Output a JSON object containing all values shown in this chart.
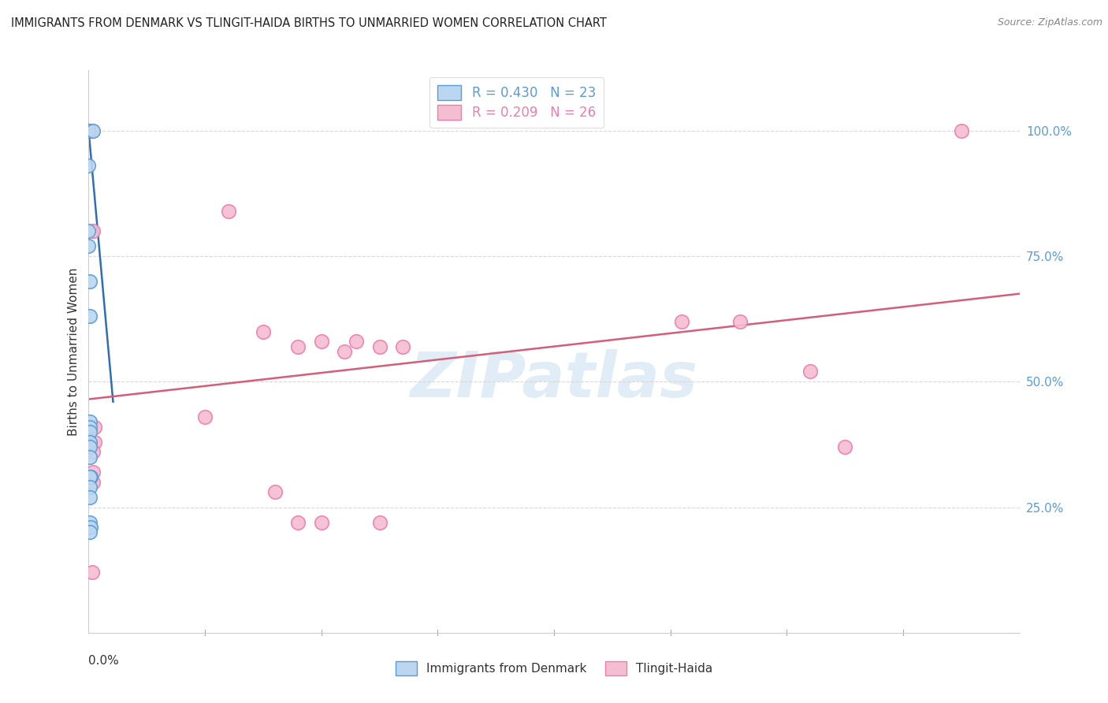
{
  "title": "IMMIGRANTS FROM DENMARK VS TLINGIT-HAIDA BIRTHS TO UNMARRIED WOMEN CORRELATION CHART",
  "source": "Source: ZipAtlas.com",
  "ylabel": "Births to Unmarried Women",
  "ytick_labels": [
    "25.0%",
    "50.0%",
    "75.0%",
    "100.0%"
  ],
  "ytick_positions": [
    0.25,
    0.5,
    0.75,
    1.0
  ],
  "xtick_label_left": "0.0%",
  "xlim": [
    0.0,
    0.8
  ],
  "ylim": [
    0.0,
    1.12
  ],
  "legend_entries": [
    {
      "label": "R = 0.430   N = 23",
      "color": "#5b9bd5"
    },
    {
      "label": "R = 0.209   N = 26",
      "color": "#ed7dac"
    }
  ],
  "legend_labels_bottom": [
    "Immigrants from Denmark",
    "Tlingit-Haida"
  ],
  "series1_scatter_color": "#bad6f0",
  "series1_edge_color": "#5b9bd5",
  "series2_scatter_color": "#f4bdd1",
  "series2_edge_color": "#ed7dac",
  "series1_line_color": "#2e6eb5",
  "series2_line_color": "#d45e7a",
  "series1_x": [
    0.0,
    0.0,
    0.0,
    0.0,
    0.004,
    0.0,
    0.0,
    0.0,
    0.001,
    0.001,
    0.001,
    0.001,
    0.001,
    0.001,
    0.001,
    0.001,
    0.002,
    0.001,
    0.001,
    0.001,
    0.001,
    0.002,
    0.001
  ],
  "series1_y": [
    1.0,
    1.0,
    1.0,
    1.0,
    1.0,
    0.93,
    0.8,
    0.77,
    0.7,
    0.63,
    0.42,
    0.41,
    0.4,
    0.38,
    0.37,
    0.35,
    0.31,
    0.31,
    0.29,
    0.27,
    0.22,
    0.21,
    0.2
  ],
  "series2_x": [
    0.003,
    0.12,
    0.15,
    0.18,
    0.2,
    0.22,
    0.23,
    0.25,
    0.27,
    0.51,
    0.56,
    0.62,
    0.75,
    0.1,
    0.16,
    0.18,
    0.004,
    0.2,
    0.25,
    0.005,
    0.005,
    0.65,
    0.004,
    0.004,
    0.004,
    0.003
  ],
  "series2_y": [
    1.0,
    0.84,
    0.6,
    0.57,
    0.58,
    0.56,
    0.58,
    0.57,
    0.57,
    0.62,
    0.62,
    0.52,
    1.0,
    0.43,
    0.28,
    0.22,
    0.8,
    0.22,
    0.22,
    0.41,
    0.38,
    0.37,
    0.36,
    0.32,
    0.3,
    0.12
  ],
  "trend1_x": [
    0.0,
    0.021
  ],
  "trend1_y": [
    1.0,
    0.46
  ],
  "trend2_x": [
    0.0,
    0.8
  ],
  "trend2_y": [
    0.465,
    0.675
  ],
  "watermark_text": "ZIPatlas",
  "watermark_color": "#c8dff0",
  "background_color": "#ffffff",
  "grid_color": "#d8d8d8"
}
